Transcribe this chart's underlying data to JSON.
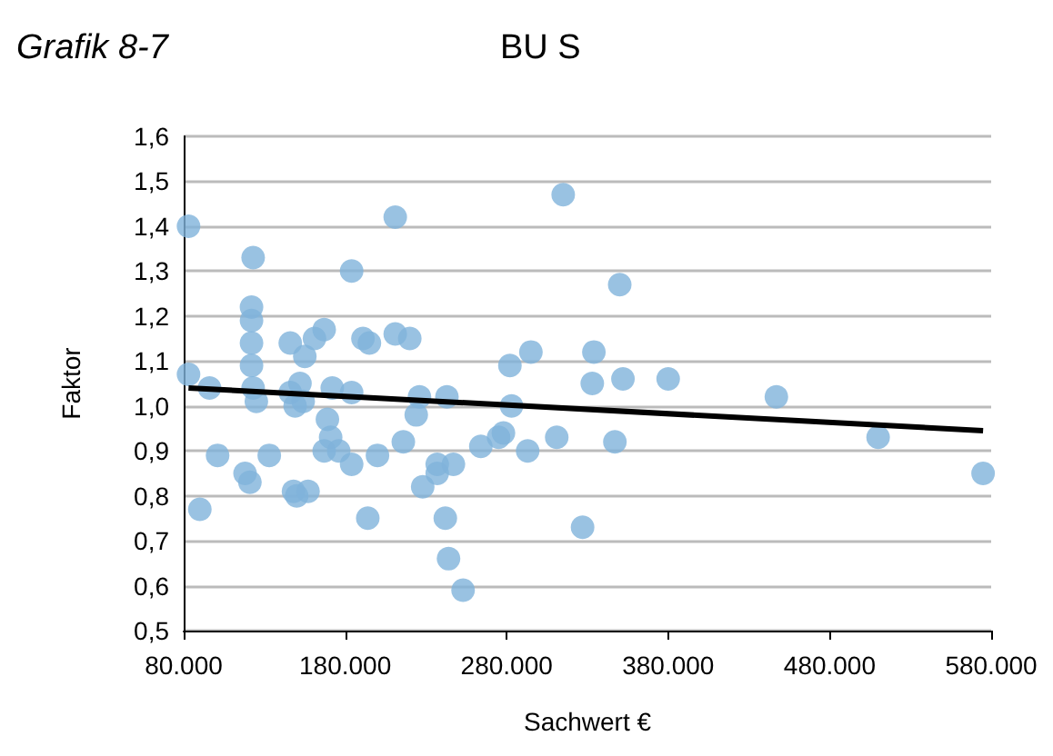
{
  "chart_data": {
    "type": "scatter",
    "title": "BU S",
    "subtitle": "Grafik 8-7",
    "xlabel": "Sachwert €",
    "ylabel": "Faktor",
    "xlim": [
      80000,
      580000
    ],
    "xticks": [
      {
        "value": 80000,
        "label": "80.000"
      },
      {
        "value": 180000,
        "label": "180.000"
      },
      {
        "value": 280000,
        "label": "280.000"
      },
      {
        "value": 380000,
        "label": "380.000"
      },
      {
        "value": 480000,
        "label": "480.000"
      },
      {
        "value": 580000,
        "label": "580.000"
      }
    ],
    "ylim": [
      0.5,
      1.6
    ],
    "yticks": [
      {
        "value": 0.5,
        "label": "0,5"
      },
      {
        "value": 0.6,
        "label": "0,6"
      },
      {
        "value": 0.7,
        "label": "0,7"
      },
      {
        "value": 0.8,
        "label": "0,8"
      },
      {
        "value": 0.9,
        "label": "0,9"
      },
      {
        "value": 1.0,
        "label": "1,0"
      },
      {
        "value": 1.1,
        "label": "1,1"
      },
      {
        "value": 1.2,
        "label": "1,2"
      },
      {
        "value": 1.3,
        "label": "1,3"
      },
      {
        "value": 1.4,
        "label": "1,4"
      },
      {
        "value": 1.5,
        "label": "1,5"
      },
      {
        "value": 1.6,
        "label": "1,6"
      }
    ],
    "grid": "y",
    "marker": "circle",
    "series": [
      {
        "color": "#7fb3db",
        "x": [
          83000,
          83000,
          96000,
          90000,
          101000,
          118000,
          121000,
          123000,
          122000,
          122000,
          122000,
          122000,
          123000,
          125000,
          133000,
          146000,
          146000,
          148000,
          150000,
          157000,
          149000,
          152000,
          154000,
          155000,
          161000,
          167000,
          167000,
          169000,
          171000,
          176000,
          184000,
          172000,
          184000,
          184000,
          191000,
          195000,
          194000,
          200000,
          211000,
          211000,
          220000,
          216000,
          224000,
          226000,
          228000,
          237000,
          237000,
          242000,
          244000,
          247000,
          243000,
          253000,
          264000,
          275000,
          278000,
          282000,
          283000,
          293000,
          295000,
          311000,
          315000,
          327000,
          333000,
          334000,
          347000,
          350000,
          352000,
          380000,
          447000,
          510000,
          575000
        ],
        "values": [
          1.4,
          1.07,
          1.04,
          0.77,
          0.89,
          0.85,
          0.83,
          1.33,
          1.22,
          1.19,
          1.14,
          1.09,
          1.04,
          1.01,
          0.89,
          1.14,
          1.03,
          0.81,
          0.8,
          0.81,
          1.0,
          1.05,
          1.01,
          1.11,
          1.15,
          1.17,
          0.9,
          0.97,
          0.93,
          0.9,
          0.87,
          1.04,
          1.03,
          1.3,
          1.15,
          1.14,
          0.75,
          0.89,
          1.42,
          1.16,
          1.15,
          0.92,
          0.98,
          1.02,
          0.82,
          0.85,
          0.87,
          0.75,
          0.66,
          0.87,
          1.02,
          0.59,
          0.91,
          0.93,
          0.94,
          1.09,
          1.0,
          0.9,
          1.12,
          0.93,
          1.47,
          0.73,
          1.05,
          1.12,
          0.92,
          1.27,
          1.06,
          1.06,
          1.02,
          0.93,
          0.85
        ]
      },
      {
        "type": "line",
        "color": "#000000",
        "marker": "none",
        "x": [
          83000,
          575000
        ],
        "values": [
          1.04,
          0.945
        ]
      }
    ]
  }
}
